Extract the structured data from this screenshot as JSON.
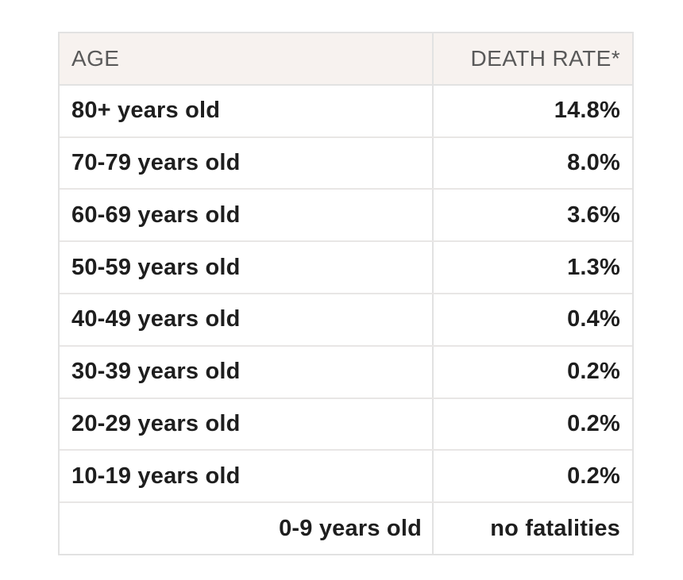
{
  "header": {
    "age_label": "AGE",
    "rate_label": "DEATH RATE*"
  },
  "rows": [
    {
      "age": "80+ years old",
      "rate": "14.8%"
    },
    {
      "age": "70-79 years old",
      "rate": "8.0%"
    },
    {
      "age": "60-69 years old",
      "rate": "3.6%"
    },
    {
      "age": "50-59 years old",
      "rate": "1.3%"
    },
    {
      "age": "40-49 years old",
      "rate": "0.4%"
    },
    {
      "age": "30-39 years old",
      "rate": "0.2%"
    },
    {
      "age": "20-29 years old",
      "rate": "0.2%"
    },
    {
      "age": "10-19 years old",
      "rate": "0.2%"
    },
    {
      "age": "0-9 years old",
      "rate": "no fatalities",
      "age_align": "right"
    }
  ],
  "colors": {
    "page_bg": "#ffffff",
    "header_bg": "#f7f2ef",
    "header_text": "#595959",
    "data_text": "#1e1e1e",
    "border": "#e2e2e2",
    "row_divider": "#e8e6e5"
  },
  "chart_data": {
    "type": "table",
    "title": "",
    "columns": [
      "AGE",
      "DEATH RATE*"
    ],
    "rows": [
      [
        "80+ years old",
        "14.8%"
      ],
      [
        "70-79 years old",
        "8.0%"
      ],
      [
        "60-69 years old",
        "3.6%"
      ],
      [
        "50-59 years old",
        "1.3%"
      ],
      [
        "40-49 years old",
        "0.4%"
      ],
      [
        "30-39 years old",
        "0.2%"
      ],
      [
        "20-29 years old",
        "0.2%"
      ],
      [
        "10-19 years old",
        "0.2%"
      ],
      [
        "0-9 years old",
        "no fatalities"
      ]
    ],
    "death_rate_percent": [
      14.8,
      8.0,
      3.6,
      1.3,
      0.4,
      0.2,
      0.2,
      0.2,
      0
    ],
    "layout": {
      "rate_column_align": "right",
      "header_background": "#f7f2ef",
      "grid": "on"
    }
  }
}
